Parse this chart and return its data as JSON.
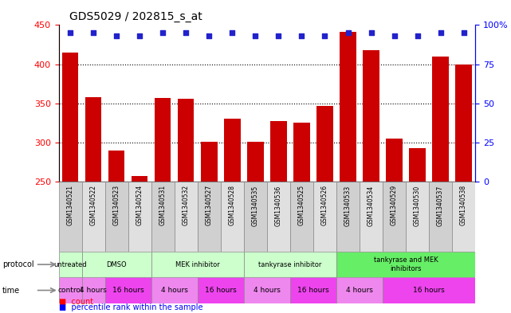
{
  "title": "GDS5029 / 202815_s_at",
  "samples": [
    "GSM1340521",
    "GSM1340522",
    "GSM1340523",
    "GSM1340524",
    "GSM1340531",
    "GSM1340532",
    "GSM1340527",
    "GSM1340528",
    "GSM1340535",
    "GSM1340536",
    "GSM1340525",
    "GSM1340526",
    "GSM1340533",
    "GSM1340534",
    "GSM1340529",
    "GSM1340530",
    "GSM1340537",
    "GSM1340538"
  ],
  "counts": [
    415,
    358,
    290,
    257,
    357,
    356,
    301,
    330,
    301,
    327,
    325,
    347,
    441,
    418,
    305,
    293,
    410,
    400
  ],
  "percentiles": [
    95,
    95,
    93,
    93,
    95,
    95,
    93,
    95,
    93,
    93,
    93,
    93,
    95,
    95,
    93,
    93,
    95,
    95
  ],
  "ylim_left": [
    250,
    450
  ],
  "ylim_right": [
    0,
    100
  ],
  "yticks_left": [
    250,
    300,
    350,
    400,
    450
  ],
  "yticks_right": [
    0,
    25,
    50,
    75,
    100
  ],
  "bar_color": "#cc0000",
  "dot_color": "#2222cc",
  "label_bg_color": "#d0d0d0",
  "protocol_spans": [
    {
      "label": "untreated",
      "start": 0,
      "end": 1,
      "color": "#ccffcc"
    },
    {
      "label": "DMSO",
      "start": 1,
      "end": 4,
      "color": "#ccffcc"
    },
    {
      "label": "MEK inhibitor",
      "start": 4,
      "end": 8,
      "color": "#ccffcc"
    },
    {
      "label": "tankyrase inhibitor",
      "start": 8,
      "end": 12,
      "color": "#ccffcc"
    },
    {
      "label": "tankyrase and MEK\ninhibitors",
      "start": 12,
      "end": 18,
      "color": "#66ee66"
    }
  ],
  "time_spans": [
    {
      "label": "control",
      "start": 0,
      "end": 1,
      "color": "#ee88ee"
    },
    {
      "label": "4 hours",
      "start": 1,
      "end": 2,
      "color": "#ee88ee"
    },
    {
      "label": "16 hours",
      "start": 2,
      "end": 4,
      "color": "#ee44ee"
    },
    {
      "label": "4 hours",
      "start": 4,
      "end": 6,
      "color": "#ee88ee"
    },
    {
      "label": "16 hours",
      "start": 6,
      "end": 8,
      "color": "#ee44ee"
    },
    {
      "label": "4 hours",
      "start": 8,
      "end": 10,
      "color": "#ee88ee"
    },
    {
      "label": "16 hours",
      "start": 10,
      "end": 12,
      "color": "#ee44ee"
    },
    {
      "label": "4 hours",
      "start": 12,
      "end": 14,
      "color": "#ee88ee"
    },
    {
      "label": "16 hours",
      "start": 14,
      "end": 18,
      "color": "#ee44ee"
    }
  ]
}
